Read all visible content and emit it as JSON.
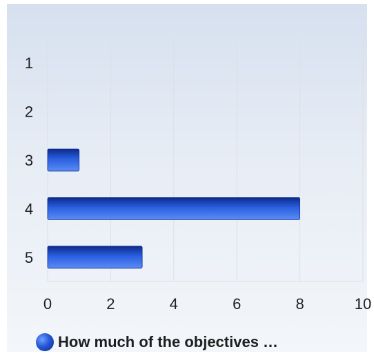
{
  "chart_data": {
    "type": "bar",
    "orientation": "horizontal",
    "categories": [
      "1",
      "2",
      "3",
      "4",
      "5"
    ],
    "series": [
      {
        "name": "How much of the objectives …",
        "values": [
          0,
          0,
          1,
          8,
          3
        ]
      }
    ],
    "x_ticks": [
      "0",
      "2",
      "4",
      "6",
      "8",
      "10"
    ],
    "xlim": [
      0,
      10
    ],
    "grid": true,
    "legend": "bottom",
    "bar_colors": {
      "dark": "#0d2a8a",
      "mid": "#2a5fe0",
      "light": "#5b8cf5"
    }
  }
}
